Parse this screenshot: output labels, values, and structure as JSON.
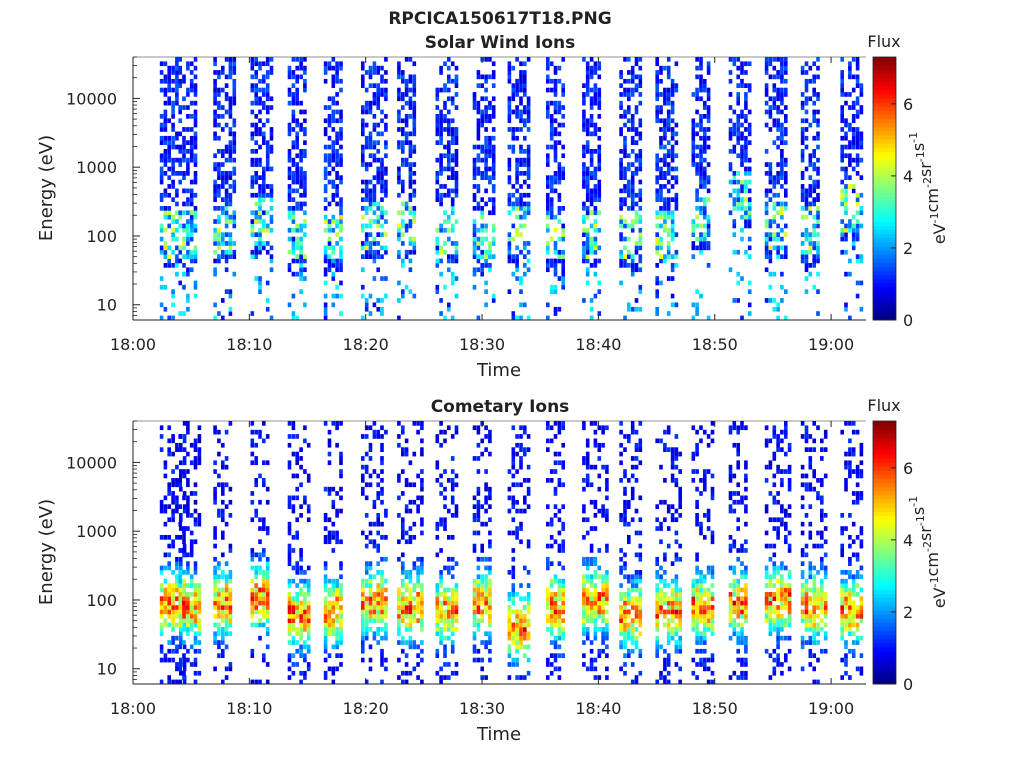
{
  "figure": {
    "title": "RPCICA150617T18.PNG"
  },
  "chart_data": [
    {
      "type": "heatmap",
      "title": "Solar Wind Ions",
      "xlabel": "Time",
      "ylabel": "Energy (eV)",
      "x_ticks": [
        "18:00",
        "18:10",
        "18:20",
        "18:30",
        "18:40",
        "18:50",
        "19:00"
      ],
      "x_range_min": [
        0,
        63
      ],
      "y_scale": "log",
      "y_ticks": [
        "10",
        "100",
        "1000",
        "10000"
      ],
      "y_range_ev": [
        6,
        40000
      ],
      "colorbar": {
        "title": "Flux",
        "label": "eV-1cm-2sr-1s-1",
        "range": [
          0,
          7.3
        ],
        "ticks": [
          "0",
          "2",
          "4",
          "6"
        ]
      },
      "burst_start_min": [
        2.3,
        3.9,
        6.9,
        10.1,
        13.3,
        16.4,
        19.6,
        22.7,
        26.0,
        29.2,
        32.2,
        35.5,
        38.6,
        41.8,
        44.9,
        48.0,
        51.2,
        54.3,
        57.4,
        60.8
      ],
      "burst_peak_energy_ev": [
        110,
        100,
        120,
        160,
        100,
        100,
        150,
        140,
        120,
        100,
        120,
        100,
        110,
        100,
        110,
        200,
        400,
        150,
        120,
        250
      ],
      "max_flux": 4.8
    },
    {
      "type": "heatmap",
      "title": "Cometary Ions",
      "xlabel": "Time",
      "ylabel": "Energy (eV)",
      "x_ticks": [
        "18:00",
        "18:10",
        "18:20",
        "18:30",
        "18:40",
        "18:50",
        "19:00"
      ],
      "x_range_min": [
        0,
        63
      ],
      "y_scale": "log",
      "y_ticks": [
        "10",
        "100",
        "1000",
        "10000"
      ],
      "y_range_ev": [
        6,
        40000
      ],
      "colorbar": {
        "title": "Flux",
        "label": "eV-1cm-2sr-1s-1",
        "range": [
          0,
          7.3
        ],
        "ticks": [
          "0",
          "2",
          "4",
          "6"
        ]
      },
      "burst_start_min": [
        2.3,
        3.9,
        6.9,
        10.1,
        13.3,
        16.4,
        19.6,
        22.7,
        26.0,
        29.2,
        32.2,
        35.5,
        38.6,
        41.8,
        44.9,
        48.0,
        51.2,
        54.3,
        57.4,
        60.8
      ],
      "burst_peak_energy_ev": [
        90,
        80,
        90,
        110,
        60,
        70,
        90,
        80,
        70,
        90,
        40,
        80,
        100,
        60,
        70,
        80,
        90,
        100,
        80,
        70
      ],
      "max_flux": 6.5
    }
  ]
}
